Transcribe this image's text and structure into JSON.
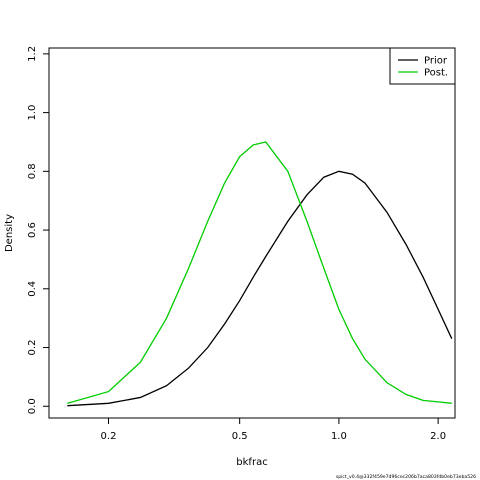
{
  "chart_data": {
    "type": "line",
    "xlabel": "bkfrac",
    "ylabel": "Density",
    "x_scale": "log",
    "xlim": [
      0.132,
      2.25
    ],
    "ylim": [
      -0.04,
      1.22
    ],
    "x_ticks": [
      0.2,
      0.5,
      1.0,
      2.0
    ],
    "x_tick_labels": [
      "0.2",
      "0.5",
      "1.0",
      "2.0"
    ],
    "y_ticks": [
      0.0,
      0.2,
      0.4,
      0.6,
      0.8,
      1.0,
      1.2
    ],
    "y_tick_labels": [
      "0.0",
      "0.2",
      "0.4",
      "0.6",
      "0.8",
      "1.0",
      "1.2"
    ],
    "grid": false,
    "legend_position": "top-right",
    "series": [
      {
        "name": "Prior",
        "color": "#000000",
        "x": [
          0.15,
          0.2,
          0.25,
          0.3,
          0.35,
          0.4,
          0.45,
          0.5,
          0.55,
          0.6,
          0.7,
          0.8,
          0.9,
          1.0,
          1.1,
          1.2,
          1.4,
          1.6,
          1.8,
          2.0,
          2.2
        ],
        "y": [
          0.002,
          0.01,
          0.03,
          0.07,
          0.13,
          0.2,
          0.28,
          0.36,
          0.44,
          0.51,
          0.63,
          0.72,
          0.78,
          0.8,
          0.79,
          0.76,
          0.66,
          0.55,
          0.44,
          0.33,
          0.23
        ]
      },
      {
        "name": "Post.",
        "color": "#00cc00",
        "x": [
          0.15,
          0.2,
          0.25,
          0.3,
          0.35,
          0.4,
          0.45,
          0.5,
          0.55,
          0.6,
          0.7,
          0.8,
          0.9,
          1.0,
          1.1,
          1.2,
          1.4,
          1.6,
          1.8,
          2.0,
          2.2
        ],
        "y": [
          0.01,
          0.05,
          0.15,
          0.3,
          0.47,
          0.63,
          0.76,
          0.85,
          0.89,
          0.9,
          0.8,
          0.63,
          0.47,
          0.33,
          0.23,
          0.16,
          0.08,
          0.04,
          0.02,
          0.015,
          0.01
        ]
      }
    ]
  },
  "footer": {
    "version_text": "spict_v0.4@332f459e7d96cec206b7aca803fdb0eb73eba526"
  }
}
